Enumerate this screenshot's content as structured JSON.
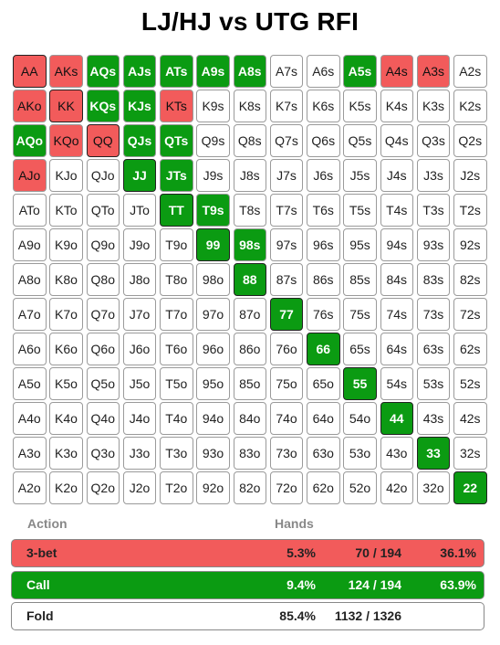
{
  "title": "LJ/HJ vs UTG RFI",
  "grid": [
    [
      [
        "AA",
        "raise"
      ],
      [
        "AKs",
        "raise"
      ],
      [
        "AQs",
        "call"
      ],
      [
        "AJs",
        "call"
      ],
      [
        "ATs",
        "call"
      ],
      [
        "A9s",
        "call"
      ],
      [
        "A8s",
        "call"
      ],
      [
        "A7s",
        "fold"
      ],
      [
        "A6s",
        "fold"
      ],
      [
        "A5s",
        "call"
      ],
      [
        "A4s",
        "raise"
      ],
      [
        "A3s",
        "raise"
      ],
      [
        "A2s",
        "fold"
      ]
    ],
    [
      [
        "AKo",
        "raise"
      ],
      [
        "KK",
        "raise"
      ],
      [
        "KQs",
        "call"
      ],
      [
        "KJs",
        "call"
      ],
      [
        "KTs",
        "raise"
      ],
      [
        "K9s",
        "fold"
      ],
      [
        "K8s",
        "fold"
      ],
      [
        "K7s",
        "fold"
      ],
      [
        "K6s",
        "fold"
      ],
      [
        "K5s",
        "fold"
      ],
      [
        "K4s",
        "fold"
      ],
      [
        "K3s",
        "fold"
      ],
      [
        "K2s",
        "fold"
      ]
    ],
    [
      [
        "AQo",
        "call"
      ],
      [
        "KQo",
        "raise"
      ],
      [
        "QQ",
        "raise"
      ],
      [
        "QJs",
        "call"
      ],
      [
        "QTs",
        "call"
      ],
      [
        "Q9s",
        "fold"
      ],
      [
        "Q8s",
        "fold"
      ],
      [
        "Q7s",
        "fold"
      ],
      [
        "Q6s",
        "fold"
      ],
      [
        "Q5s",
        "fold"
      ],
      [
        "Q4s",
        "fold"
      ],
      [
        "Q3s",
        "fold"
      ],
      [
        "Q2s",
        "fold"
      ]
    ],
    [
      [
        "AJo",
        "raise"
      ],
      [
        "KJo",
        "fold"
      ],
      [
        "QJo",
        "fold"
      ],
      [
        "JJ",
        "call"
      ],
      [
        "JTs",
        "call"
      ],
      [
        "J9s",
        "fold"
      ],
      [
        "J8s",
        "fold"
      ],
      [
        "J7s",
        "fold"
      ],
      [
        "J6s",
        "fold"
      ],
      [
        "J5s",
        "fold"
      ],
      [
        "J4s",
        "fold"
      ],
      [
        "J3s",
        "fold"
      ],
      [
        "J2s",
        "fold"
      ]
    ],
    [
      [
        "ATo",
        "fold"
      ],
      [
        "KTo",
        "fold"
      ],
      [
        "QTo",
        "fold"
      ],
      [
        "JTo",
        "fold"
      ],
      [
        "TT",
        "call"
      ],
      [
        "T9s",
        "call"
      ],
      [
        "T8s",
        "fold"
      ],
      [
        "T7s",
        "fold"
      ],
      [
        "T6s",
        "fold"
      ],
      [
        "T5s",
        "fold"
      ],
      [
        "T4s",
        "fold"
      ],
      [
        "T3s",
        "fold"
      ],
      [
        "T2s",
        "fold"
      ]
    ],
    [
      [
        "A9o",
        "fold"
      ],
      [
        "K9o",
        "fold"
      ],
      [
        "Q9o",
        "fold"
      ],
      [
        "J9o",
        "fold"
      ],
      [
        "T9o",
        "fold"
      ],
      [
        "99",
        "call"
      ],
      [
        "98s",
        "call"
      ],
      [
        "97s",
        "fold"
      ],
      [
        "96s",
        "fold"
      ],
      [
        "95s",
        "fold"
      ],
      [
        "94s",
        "fold"
      ],
      [
        "93s",
        "fold"
      ],
      [
        "92s",
        "fold"
      ]
    ],
    [
      [
        "A8o",
        "fold"
      ],
      [
        "K8o",
        "fold"
      ],
      [
        "Q8o",
        "fold"
      ],
      [
        "J8o",
        "fold"
      ],
      [
        "T8o",
        "fold"
      ],
      [
        "98o",
        "fold"
      ],
      [
        "88",
        "call"
      ],
      [
        "87s",
        "fold"
      ],
      [
        "86s",
        "fold"
      ],
      [
        "85s",
        "fold"
      ],
      [
        "84s",
        "fold"
      ],
      [
        "83s",
        "fold"
      ],
      [
        "82s",
        "fold"
      ]
    ],
    [
      [
        "A7o",
        "fold"
      ],
      [
        "K7o",
        "fold"
      ],
      [
        "Q7o",
        "fold"
      ],
      [
        "J7o",
        "fold"
      ],
      [
        "T7o",
        "fold"
      ],
      [
        "97o",
        "fold"
      ],
      [
        "87o",
        "fold"
      ],
      [
        "77",
        "call"
      ],
      [
        "76s",
        "fold"
      ],
      [
        "75s",
        "fold"
      ],
      [
        "74s",
        "fold"
      ],
      [
        "73s",
        "fold"
      ],
      [
        "72s",
        "fold"
      ]
    ],
    [
      [
        "A6o",
        "fold"
      ],
      [
        "K6o",
        "fold"
      ],
      [
        "Q6o",
        "fold"
      ],
      [
        "J6o",
        "fold"
      ],
      [
        "T6o",
        "fold"
      ],
      [
        "96o",
        "fold"
      ],
      [
        "86o",
        "fold"
      ],
      [
        "76o",
        "fold"
      ],
      [
        "66",
        "call"
      ],
      [
        "65s",
        "fold"
      ],
      [
        "64s",
        "fold"
      ],
      [
        "63s",
        "fold"
      ],
      [
        "62s",
        "fold"
      ]
    ],
    [
      [
        "A5o",
        "fold"
      ],
      [
        "K5o",
        "fold"
      ],
      [
        "Q5o",
        "fold"
      ],
      [
        "J5o",
        "fold"
      ],
      [
        "T5o",
        "fold"
      ],
      [
        "95o",
        "fold"
      ],
      [
        "85o",
        "fold"
      ],
      [
        "75o",
        "fold"
      ],
      [
        "65o",
        "fold"
      ],
      [
        "55",
        "call"
      ],
      [
        "54s",
        "fold"
      ],
      [
        "53s",
        "fold"
      ],
      [
        "52s",
        "fold"
      ]
    ],
    [
      [
        "A4o",
        "fold"
      ],
      [
        "K4o",
        "fold"
      ],
      [
        "Q4o",
        "fold"
      ],
      [
        "J4o",
        "fold"
      ],
      [
        "T4o",
        "fold"
      ],
      [
        "94o",
        "fold"
      ],
      [
        "84o",
        "fold"
      ],
      [
        "74o",
        "fold"
      ],
      [
        "64o",
        "fold"
      ],
      [
        "54o",
        "fold"
      ],
      [
        "44",
        "call"
      ],
      [
        "43s",
        "fold"
      ],
      [
        "42s",
        "fold"
      ]
    ],
    [
      [
        "A3o",
        "fold"
      ],
      [
        "K3o",
        "fold"
      ],
      [
        "Q3o",
        "fold"
      ],
      [
        "J3o",
        "fold"
      ],
      [
        "T3o",
        "fold"
      ],
      [
        "93o",
        "fold"
      ],
      [
        "83o",
        "fold"
      ],
      [
        "73o",
        "fold"
      ],
      [
        "63o",
        "fold"
      ],
      [
        "53o",
        "fold"
      ],
      [
        "43o",
        "fold"
      ],
      [
        "33",
        "call"
      ],
      [
        "32s",
        "fold"
      ]
    ],
    [
      [
        "A2o",
        "fold"
      ],
      [
        "K2o",
        "fold"
      ],
      [
        "Q2o",
        "fold"
      ],
      [
        "J2o",
        "fold"
      ],
      [
        "T2o",
        "fold"
      ],
      [
        "92o",
        "fold"
      ],
      [
        "82o",
        "fold"
      ],
      [
        "72o",
        "fold"
      ],
      [
        "62o",
        "fold"
      ],
      [
        "52o",
        "fold"
      ],
      [
        "42o",
        "fold"
      ],
      [
        "32o",
        "fold"
      ],
      [
        "22",
        "call"
      ]
    ]
  ],
  "colors": {
    "raise": "#f25b5b",
    "call": "#0b9b12",
    "fold": "#ffffff"
  },
  "legend": {
    "action_header": "Action",
    "hands_header": "Hands",
    "rows": [
      {
        "key": "raise",
        "label": "3-bet",
        "pct": "5.3%",
        "count": "70 / 194",
        "frac": "36.1%"
      },
      {
        "key": "call",
        "label": "Call",
        "pct": "9.4%",
        "count": "124 / 194",
        "frac": "63.9%"
      },
      {
        "key": "fold",
        "label": "Fold",
        "pct": "85.4%",
        "count": "1132 / 1326",
        "frac": ""
      }
    ]
  }
}
